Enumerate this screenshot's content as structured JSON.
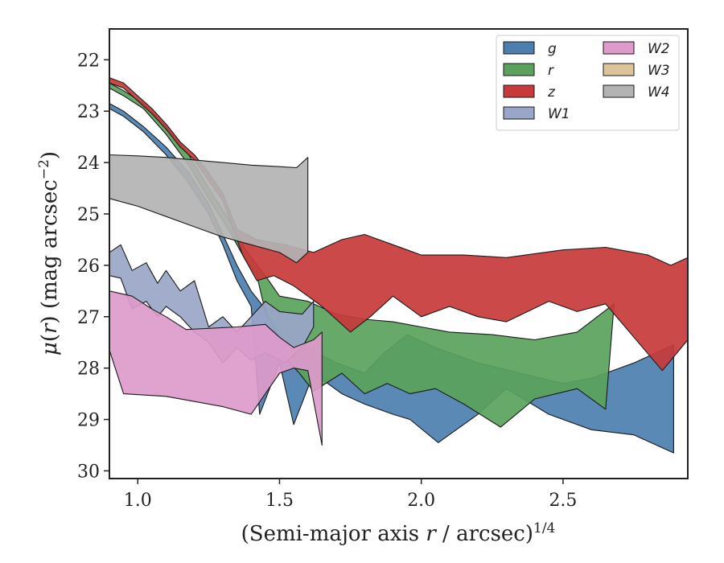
{
  "chart_data": {
    "type": "area",
    "xlabel": "(Semi-major axis r / arcsec)^1/4",
    "ylabel": "μ(r) (mag arcsec^−2)",
    "xlim": [
      0.9,
      2.94
    ],
    "ylim": [
      30.15,
      21.4
    ],
    "y_inverted": true,
    "xticks": [
      "1.0",
      "1.5",
      "2.0",
      "2.5"
    ],
    "yticks": [
      "22",
      "23",
      "24",
      "25",
      "26",
      "27",
      "28",
      "29",
      "30"
    ],
    "legend": {
      "placement": "top-right",
      "columns": 2
    },
    "series": [
      {
        "name": "g",
        "color": "#4c7fb0",
        "upper": [
          [
            0.9,
            22.85
          ],
          [
            0.95,
            23.0
          ],
          [
            1.02,
            23.3
          ],
          [
            1.1,
            23.7
          ],
          [
            1.18,
            24.2
          ],
          [
            1.25,
            24.8
          ],
          [
            1.3,
            25.4
          ],
          [
            1.35,
            26.0
          ],
          [
            1.4,
            26.5
          ],
          [
            1.5,
            27.2
          ],
          [
            1.6,
            27.6
          ],
          [
            1.7,
            27.9
          ],
          [
            1.8,
            28.1
          ],
          [
            1.87,
            27.7
          ],
          [
            1.95,
            27.35
          ],
          [
            2.05,
            27.6
          ],
          [
            2.2,
            27.9
          ],
          [
            2.35,
            28.1
          ],
          [
            2.5,
            28.3
          ],
          [
            2.6,
            28.2
          ],
          [
            2.75,
            27.9
          ],
          [
            2.89,
            27.55
          ]
        ],
        "lower": [
          [
            0.9,
            22.95
          ],
          [
            0.95,
            23.1
          ],
          [
            1.02,
            23.4
          ],
          [
            1.1,
            23.85
          ],
          [
            1.18,
            24.4
          ],
          [
            1.25,
            25.0
          ],
          [
            1.3,
            25.6
          ],
          [
            1.35,
            26.3
          ],
          [
            1.4,
            26.8
          ],
          [
            1.43,
            28.9
          ],
          [
            1.5,
            27.9
          ],
          [
            1.55,
            29.1
          ],
          [
            1.62,
            28.1
          ],
          [
            1.72,
            28.5
          ],
          [
            1.8,
            28.7
          ],
          [
            1.9,
            28.9
          ],
          [
            1.96,
            29.0
          ],
          [
            2.06,
            29.45
          ],
          [
            2.2,
            28.9
          ],
          [
            2.3,
            28.4
          ],
          [
            2.45,
            28.9
          ],
          [
            2.6,
            29.2
          ],
          [
            2.75,
            29.3
          ],
          [
            2.89,
            29.65
          ]
        ]
      },
      {
        "name": "r",
        "color": "#5aa25c",
        "upper": [
          [
            0.9,
            22.45
          ],
          [
            0.95,
            22.6
          ],
          [
            1.02,
            22.85
          ],
          [
            1.1,
            23.3
          ],
          [
            1.18,
            23.85
          ],
          [
            1.25,
            24.5
          ],
          [
            1.32,
            25.1
          ],
          [
            1.38,
            25.7
          ],
          [
            1.45,
            26.2
          ],
          [
            1.5,
            26.6
          ],
          [
            1.6,
            26.7
          ],
          [
            1.7,
            26.95
          ],
          [
            1.8,
            27.05
          ],
          [
            1.9,
            27.1
          ],
          [
            2.0,
            27.2
          ],
          [
            2.1,
            27.3
          ],
          [
            2.25,
            27.35
          ],
          [
            2.4,
            27.45
          ],
          [
            2.55,
            27.3
          ],
          [
            2.68,
            26.75
          ]
        ],
        "lower": [
          [
            0.9,
            22.55
          ],
          [
            0.95,
            22.7
          ],
          [
            1.02,
            22.95
          ],
          [
            1.1,
            23.45
          ],
          [
            1.18,
            24.05
          ],
          [
            1.25,
            24.7
          ],
          [
            1.32,
            25.3
          ],
          [
            1.38,
            25.9
          ],
          [
            1.42,
            26.2
          ],
          [
            1.45,
            26.9
          ],
          [
            1.48,
            27.2
          ],
          [
            1.52,
            27.8
          ],
          [
            1.57,
            28.1
          ],
          [
            1.62,
            28.45
          ],
          [
            1.72,
            28.1
          ],
          [
            1.8,
            28.5
          ],
          [
            1.88,
            28.3
          ],
          [
            1.96,
            28.5
          ],
          [
            2.05,
            28.4
          ],
          [
            2.15,
            28.7
          ],
          [
            2.28,
            29.15
          ],
          [
            2.4,
            28.6
          ],
          [
            2.55,
            28.4
          ],
          [
            2.65,
            28.8
          ],
          [
            2.68,
            26.75
          ]
        ]
      },
      {
        "name": "z",
        "color": "#c8393b",
        "upper": [
          [
            0.9,
            22.35
          ],
          [
            0.95,
            22.45
          ],
          [
            1.0,
            22.7
          ],
          [
            1.05,
            22.95
          ],
          [
            1.1,
            23.25
          ],
          [
            1.15,
            23.6
          ],
          [
            1.2,
            23.85
          ],
          [
            1.25,
            24.2
          ],
          [
            1.3,
            24.6
          ],
          [
            1.35,
            25.3
          ],
          [
            1.42,
            25.5
          ],
          [
            1.52,
            25.6
          ],
          [
            1.62,
            25.75
          ],
          [
            1.72,
            25.5
          ],
          [
            1.8,
            25.4
          ],
          [
            1.9,
            25.6
          ],
          [
            2.0,
            25.8
          ],
          [
            2.15,
            25.8
          ],
          [
            2.3,
            25.85
          ],
          [
            2.5,
            25.7
          ],
          [
            2.65,
            25.65
          ],
          [
            2.8,
            25.8
          ],
          [
            2.88,
            26.0
          ],
          [
            2.94,
            25.85
          ]
        ],
        "lower": [
          [
            0.9,
            22.45
          ],
          [
            0.95,
            22.55
          ],
          [
            1.0,
            22.8
          ],
          [
            1.05,
            23.05
          ],
          [
            1.1,
            23.35
          ],
          [
            1.15,
            23.7
          ],
          [
            1.2,
            23.95
          ],
          [
            1.25,
            24.35
          ],
          [
            1.3,
            24.75
          ],
          [
            1.37,
            25.8
          ],
          [
            1.42,
            26.3
          ],
          [
            1.48,
            26.2
          ],
          [
            1.55,
            26.4
          ],
          [
            1.65,
            26.8
          ],
          [
            1.75,
            27.3
          ],
          [
            1.82,
            27.0
          ],
          [
            1.9,
            26.6
          ],
          [
            2.0,
            27.0
          ],
          [
            2.1,
            26.8
          ],
          [
            2.2,
            27.0
          ],
          [
            2.3,
            27.1
          ],
          [
            2.45,
            26.7
          ],
          [
            2.55,
            26.9
          ],
          [
            2.65,
            26.75
          ],
          [
            2.75,
            27.4
          ],
          [
            2.85,
            28.05
          ],
          [
            2.94,
            27.45
          ]
        ]
      },
      {
        "name": "W1",
        "color": "#9aa6c8",
        "upper": [
          [
            0.9,
            25.75
          ],
          [
            0.94,
            25.6
          ],
          [
            0.98,
            26.1
          ],
          [
            1.03,
            25.95
          ],
          [
            1.07,
            26.35
          ],
          [
            1.1,
            26.1
          ],
          [
            1.15,
            26.5
          ],
          [
            1.2,
            26.3
          ],
          [
            1.25,
            27.2
          ],
          [
            1.3,
            27.0
          ],
          [
            1.35,
            27.3
          ],
          [
            1.4,
            27.0
          ],
          [
            1.45,
            26.7
          ],
          [
            1.5,
            26.9
          ],
          [
            1.58,
            26.95
          ],
          [
            1.62,
            26.7
          ]
        ],
        "lower": [
          [
            0.9,
            26.2
          ],
          [
            0.94,
            26.25
          ],
          [
            0.98,
            26.85
          ],
          [
            1.03,
            26.7
          ],
          [
            1.07,
            27.0
          ],
          [
            1.1,
            26.8
          ],
          [
            1.15,
            27.0
          ],
          [
            1.2,
            27.3
          ],
          [
            1.25,
            27.5
          ],
          [
            1.3,
            27.9
          ],
          [
            1.35,
            27.6
          ],
          [
            1.4,
            27.85
          ],
          [
            1.45,
            27.7
          ],
          [
            1.52,
            27.9
          ],
          [
            1.58,
            27.6
          ],
          [
            1.62,
            27.2
          ]
        ]
      },
      {
        "name": "W2",
        "color": "#dd9acb",
        "upper": [
          [
            0.9,
            26.5
          ],
          [
            0.98,
            26.6
          ],
          [
            1.05,
            26.85
          ],
          [
            1.1,
            27.0
          ],
          [
            1.17,
            27.25
          ],
          [
            1.35,
            27.2
          ],
          [
            1.45,
            27.15
          ],
          [
            1.5,
            27.4
          ],
          [
            1.55,
            27.6
          ],
          [
            1.62,
            27.45
          ],
          [
            1.65,
            27.3
          ]
        ],
        "lower": [
          [
            0.9,
            27.65
          ],
          [
            0.95,
            28.5
          ],
          [
            1.1,
            28.55
          ],
          [
            1.2,
            28.65
          ],
          [
            1.3,
            28.75
          ],
          [
            1.4,
            28.9
          ],
          [
            1.45,
            28.5
          ],
          [
            1.5,
            28.1
          ],
          [
            1.55,
            28.0
          ],
          [
            1.6,
            28.05
          ],
          [
            1.65,
            29.5
          ]
        ]
      },
      {
        "name": "W3",
        "color": "#ddc39a",
        "upper": [],
        "lower": []
      },
      {
        "name": "W4",
        "color": "#b3b3b3",
        "upper": [
          [
            0.9,
            23.85
          ],
          [
            1.0,
            23.87
          ],
          [
            1.1,
            23.9
          ],
          [
            1.2,
            23.95
          ],
          [
            1.3,
            24.0
          ],
          [
            1.4,
            24.05
          ],
          [
            1.5,
            24.08
          ],
          [
            1.56,
            24.1
          ],
          [
            1.6,
            23.9
          ]
        ],
        "lower": [
          [
            0.9,
            24.7
          ],
          [
            1.0,
            24.85
          ],
          [
            1.1,
            25.05
          ],
          [
            1.2,
            25.25
          ],
          [
            1.3,
            25.45
          ],
          [
            1.4,
            25.6
          ],
          [
            1.5,
            25.75
          ],
          [
            1.56,
            25.95
          ],
          [
            1.6,
            25.75
          ]
        ]
      }
    ]
  }
}
